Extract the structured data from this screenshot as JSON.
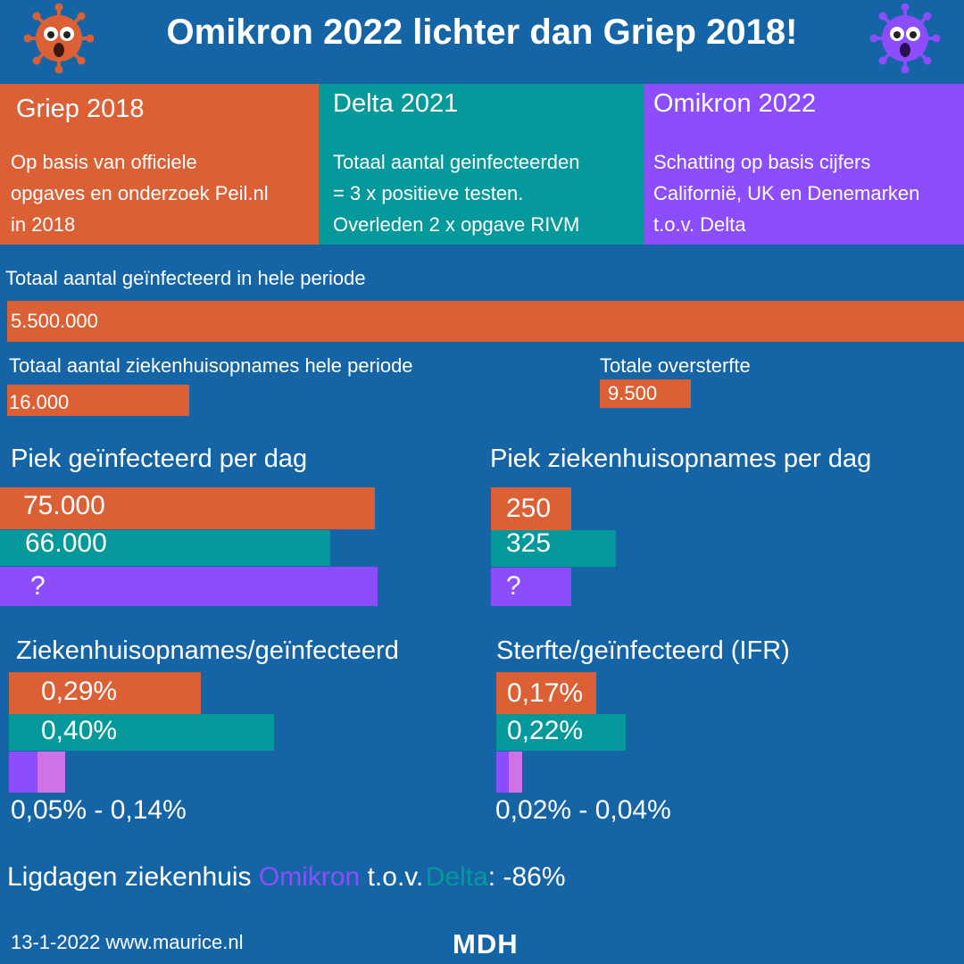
{
  "title": "Omikron 2022 lichter dan Griep 2018!",
  "colors": {
    "background": "#1565a6",
    "griep": "#dc6035",
    "delta": "#05999b",
    "omikron": "#8c4dfd",
    "omikron_light": "#cf72e8"
  },
  "icons": {
    "left": "shocked-virus-orange-icon",
    "right": "shocked-virus-purple-icon"
  },
  "panels": [
    {
      "heading": "Griep 2018",
      "description": "Op basis van officiele\nopgaves en onderzoek Peil.nl\nin 2018"
    },
    {
      "heading": "Delta 2021",
      "description": "Totaal aantal geinfecteerden\n=  3 x positieve testen.\nOverleden 2 x opgave RIVM"
    },
    {
      "heading": "Omikron 2022",
      "description": "Schatting op basis cijfers\nCalifornië, UK en Denemarken\nt.o.v. Delta"
    }
  ],
  "totals": {
    "infected_label": "Totaal aantal geïnfecteerd in hele periode",
    "hospital_label": "Totaal aantal ziekenhuisopnames hele periode",
    "excess_label": "Totale oversterfte"
  },
  "peaks": {
    "infected_label": "Piek geïnfecteerd per dag",
    "hospital_label": "Piek ziekenhuisopnames per dag"
  },
  "ratios": {
    "hospital_label": "Ziekenhuisopnames/geïnfecteerd",
    "ifr_label": "Sterfte/geïnfecteerd (IFR)"
  },
  "chart_data": [
    {
      "type": "bar",
      "orientation": "horizontal",
      "series": [
        {
          "name": "Griep 2018",
          "values": [
            5500000
          ],
          "value_labels": [
            "5.500.000"
          ]
        }
      ]
    },
    {
      "type": "bar",
      "orientation": "horizontal",
      "series": [
        {
          "name": "Griep 2018",
          "values": [
            16000
          ],
          "value_labels": [
            "16.000"
          ]
        }
      ]
    },
    {
      "type": "bar",
      "orientation": "horizontal",
      "series": [
        {
          "name": "Griep 2018",
          "values": [
            9500
          ],
          "value_labels": [
            "9.500"
          ]
        }
      ]
    },
    {
      "type": "bar",
      "orientation": "horizontal",
      "series": [
        {
          "name": "Griep 2018",
          "values": [
            75000
          ],
          "value_labels": [
            "75.000"
          ]
        },
        {
          "name": "Delta 2021",
          "values": [
            66000
          ],
          "value_labels": [
            "66.000"
          ]
        },
        {
          "name": "Omikron 2022",
          "values": [
            null
          ],
          "value_labels": [
            "?"
          ]
        }
      ]
    },
    {
      "type": "bar",
      "orientation": "horizontal",
      "series": [
        {
          "name": "Griep 2018",
          "values": [
            250
          ],
          "value_labels": [
            "250"
          ]
        },
        {
          "name": "Delta 2021",
          "values": [
            325
          ],
          "value_labels": [
            "325"
          ]
        },
        {
          "name": "Omikron 2022",
          "values": [
            null
          ],
          "value_labels": [
            "?"
          ]
        }
      ]
    },
    {
      "type": "bar",
      "orientation": "horizontal",
      "series": [
        {
          "name": "Griep 2018",
          "values": [
            0.29
          ],
          "value_labels": [
            "0,29%"
          ]
        },
        {
          "name": "Delta 2021",
          "values": [
            0.4
          ],
          "value_labels": [
            "0,40%"
          ]
        },
        {
          "name": "Omikron 2022",
          "values": [
            [
              0.05,
              0.14
            ]
          ],
          "value_labels": [
            "0,05% - 0,14%"
          ]
        }
      ]
    },
    {
      "type": "bar",
      "orientation": "horizontal",
      "series": [
        {
          "name": "Griep 2018",
          "values": [
            0.17
          ],
          "value_labels": [
            "0,17%"
          ]
        },
        {
          "name": "Delta 2021",
          "values": [
            0.22
          ],
          "value_labels": [
            "0,22%"
          ]
        },
        {
          "name": "Omikron 2022",
          "values": [
            [
              0.02,
              0.04
            ]
          ],
          "value_labels": [
            "0,02% - 0,04%"
          ]
        }
      ]
    }
  ],
  "ligdagen": {
    "prefix": "Ligdagen ziekenhuis",
    "omikron": "Omikron",
    "tov": "t.o.v.",
    "delta": "Delta",
    "suffix": ":  -86%"
  },
  "footer": {
    "date_site": "13-1-2022  www.maurice.nl",
    "logo": "MDH"
  }
}
